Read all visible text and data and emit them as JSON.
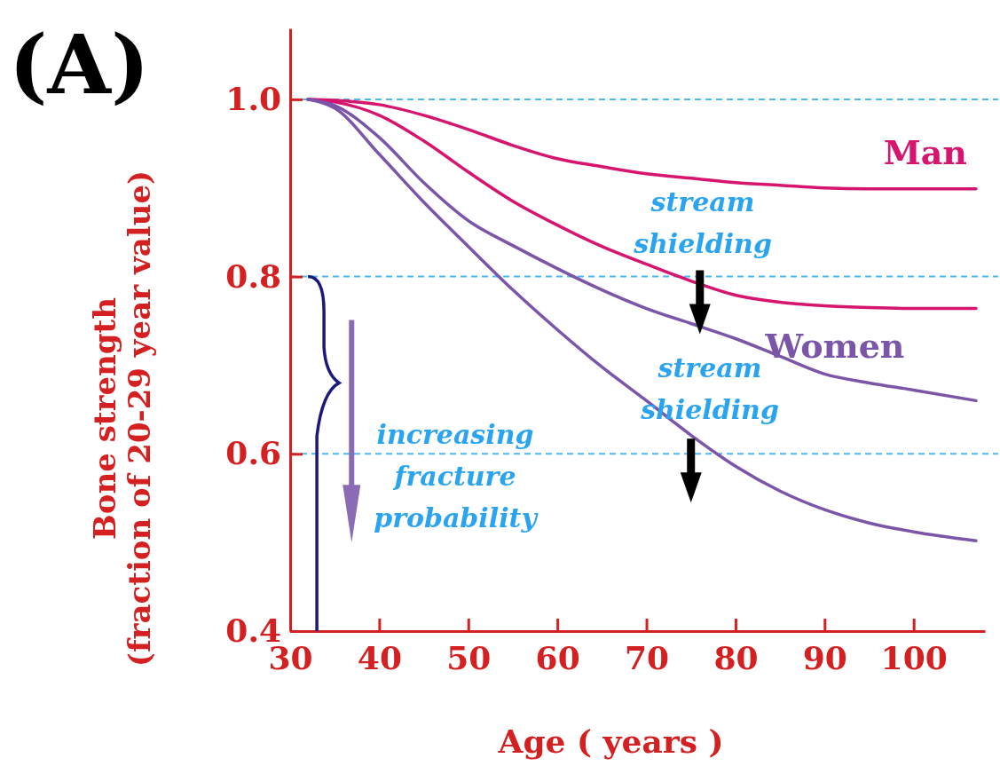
{
  "chart_data": {
    "type": "line",
    "title": "(A)",
    "xlabel": "Age ( years )",
    "ylabel": "Bone strength\n(fraction of 20-29 year value)",
    "x": [
      32,
      35,
      40,
      45,
      50,
      55,
      60,
      65,
      70,
      75,
      80,
      85,
      90,
      95,
      100,
      107
    ],
    "xlim": [
      30,
      108
    ],
    "xticks": [
      30,
      40,
      50,
      60,
      70,
      80,
      90,
      100
    ],
    "ylim": [
      0.4,
      1.08
    ],
    "yticks": [
      {
        "value": 0.4,
        "label": "0.4"
      },
      {
        "value": 0.6,
        "label": "0.6"
      },
      {
        "value": 0.8,
        "label": "0.8"
      },
      {
        "value": 1.0,
        "label": "1.0"
      }
    ],
    "series": [
      {
        "name": "Man",
        "color": "#d6156e",
        "values": [
          1.0,
          0.999,
          0.994,
          0.982,
          0.966,
          0.948,
          0.933,
          0.924,
          0.916,
          0.911,
          0.906,
          0.903,
          0.9,
          0.899,
          0.899,
          0.899
        ]
      },
      {
        "color": "#d6156e",
        "values": [
          1.0,
          0.997,
          0.982,
          0.953,
          0.918,
          0.885,
          0.858,
          0.834,
          0.814,
          0.795,
          0.779,
          0.771,
          0.767,
          0.765,
          0.764,
          0.764
        ]
      },
      {
        "name": "Women",
        "color": "#7a55a8",
        "values": [
          1.0,
          0.993,
          0.957,
          0.906,
          0.863,
          0.835,
          0.809,
          0.785,
          0.764,
          0.747,
          0.73,
          0.71,
          0.69,
          0.68,
          0.672,
          0.66
        ]
      },
      {
        "color": "#7a55a8",
        "values": [
          1.0,
          0.99,
          0.938,
          0.884,
          0.834,
          0.785,
          0.74,
          0.698,
          0.66,
          0.621,
          0.586,
          0.558,
          0.537,
          0.522,
          0.512,
          0.502
        ]
      }
    ],
    "ref_lines": [
      {
        "axis": "y",
        "value": 1.0,
        "color": "#4db8f0",
        "line_style": "dashed"
      },
      {
        "axis": "y",
        "value": 0.8,
        "color": "#4db8f0",
        "line_style": "dashed"
      },
      {
        "axis": "y",
        "value": 0.6,
        "color": "#4db8f0",
        "line_style": "dashed"
      }
    ],
    "annotations": [
      "stream shielding",
      "stream shielding",
      "increasing fracture probability"
    ],
    "line_style": "solid",
    "marker": "none",
    "legend": false
  }
}
